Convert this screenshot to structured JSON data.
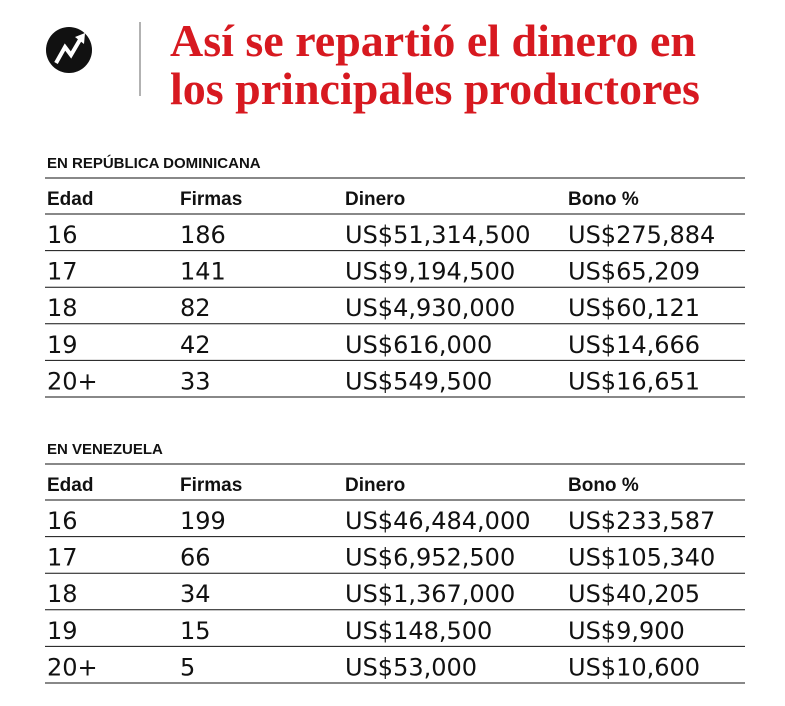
{
  "header": {
    "title_lines": [
      "Así se repartió el dinero en",
      "los principales productores"
    ]
  },
  "tables": [
    {
      "label": "EN REPÚBLICA DOMINICANA",
      "columns": [
        "Edad",
        "Firmas",
        "Dinero",
        "Bono %"
      ],
      "rows": [
        [
          "16",
          "186",
          "US$51,314,500",
          "US$275,884"
        ],
        [
          "17",
          "141",
          "US$9,194,500",
          "US$65,209"
        ],
        [
          "18",
          "82",
          "US$4,930,000",
          "US$60,121"
        ],
        [
          "19",
          "42",
          "US$616,000",
          "US$14,666"
        ],
        [
          "20+",
          "33",
          "US$549,500",
          "US$16,651"
        ]
      ]
    },
    {
      "label": "EN VENEZUELA",
      "columns": [
        "Edad",
        "Firmas",
        "Dinero",
        "Bono %"
      ],
      "rows": [
        [
          "16",
          "199",
          "US$46,484,000",
          "US$233,587"
        ],
        [
          "17",
          "66",
          "US$6,952,500",
          "US$105,340"
        ],
        [
          "18",
          "34",
          "US$1,367,000",
          "US$40,205"
        ],
        [
          "19",
          "15",
          "US$148,500",
          "US$9,900"
        ],
        [
          "20+",
          "5",
          "US$53,000",
          "US$10,600"
        ]
      ]
    }
  ]
}
